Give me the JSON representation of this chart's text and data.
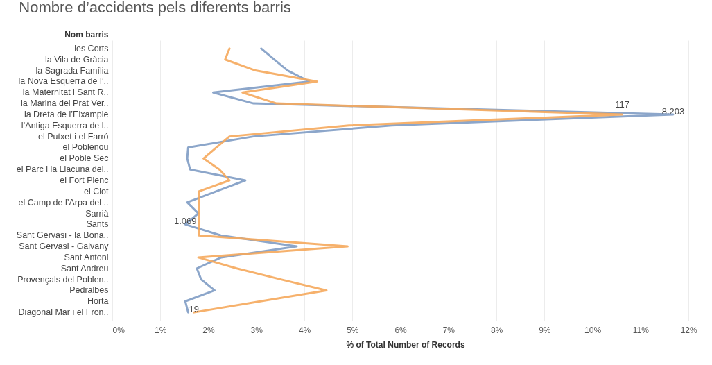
{
  "chart_data": {
    "type": "line",
    "title": "Nombre d’accidents pels diferents barris",
    "ylabel": "Nom barris",
    "xlabel": "% of Total Number of Records",
    "orientation": "horizontal",
    "categories": [
      "les Corts",
      "la Vila de Gràcia",
      "la Sagrada Família",
      "la Nova Esquerra de l’..",
      "la Maternitat i Sant R..",
      "la Marina del Prat Ver..",
      "la Dreta de l’Eixample",
      "l’Antiga Esquerra de l..",
      "el Putxet i el Farró",
      "el Poblenou",
      "el Poble Sec",
      "el Parc i la Llacuna del..",
      "el Fort Pienc",
      "el Clot",
      "el Camp de l’Arpa del ..",
      "Sarrià",
      "Sants",
      "Sant Gervasi - la Bona..",
      "Sant Gervasi - Galvany",
      "Sant Antoni",
      "Sant Andreu",
      "Provençals del Poblen..",
      "Pedralbes",
      "Horta",
      "Diagonal Mar i el Fron.."
    ],
    "series": [
      {
        "color": "#7f9cc4",
        "values": [
          3.1,
          3.37,
          3.65,
          4.1,
          2.1,
          2.94,
          11.68,
          5.82,
          2.94,
          1.58,
          1.56,
          1.62,
          2.77,
          2.16,
          1.56,
          1.79,
          1.52,
          2.26,
          3.84,
          2.27,
          1.76,
          1.85,
          2.13,
          1.52,
          1.58
        ]
      },
      {
        "color": "#f5a95c",
        "values": [
          2.44,
          2.35,
          2.98,
          4.26,
          2.71,
          3.42,
          10.62,
          4.93,
          2.44,
          2.17,
          1.9,
          2.23,
          2.44,
          1.8,
          1.8,
          1.8,
          1.8,
          1.8,
          4.9,
          1.79,
          2.59,
          3.51,
          4.46,
          3.08,
          1.7
        ]
      }
    ],
    "xlim": [
      0,
      12.2
    ],
    "xticks": [
      {
        "value": 0,
        "label": "0%"
      },
      {
        "value": 1,
        "label": "1%"
      },
      {
        "value": 2,
        "label": "2%"
      },
      {
        "value": 3,
        "label": "3%"
      },
      {
        "value": 4,
        "label": "4%"
      },
      {
        "value": 5,
        "label": "5%"
      },
      {
        "value": 6,
        "label": "6%"
      },
      {
        "value": 7,
        "label": "7%"
      },
      {
        "value": 8,
        "label": "8%"
      },
      {
        "value": 9,
        "label": "9%"
      },
      {
        "value": 10,
        "label": "10%"
      },
      {
        "value": 11,
        "label": "11%"
      },
      {
        "value": 12,
        "label": "12%"
      }
    ],
    "annotations": [
      {
        "text": "8.203",
        "x": 11.68,
        "y": "la Dreta de l’Eixample"
      },
      {
        "text": "117",
        "x": 10.62,
        "y": "la Dreta de l’Eixample"
      },
      {
        "text": "1.069",
        "x": 1.52,
        "y": "Sants"
      },
      {
        "text": "19",
        "x": 1.7,
        "y": "Diagonal Mar i el Fron.."
      }
    ],
    "grid": "x",
    "legend": false,
    "marker": "none",
    "line_style": "solid"
  }
}
